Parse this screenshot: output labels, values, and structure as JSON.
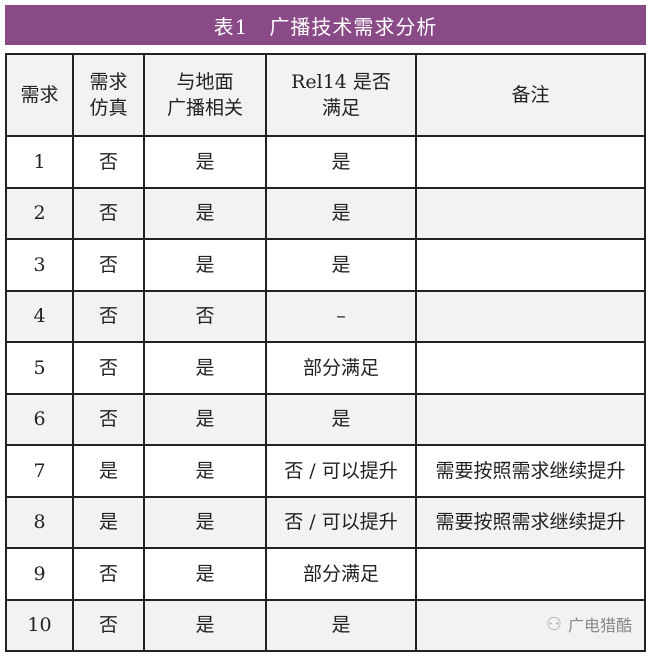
{
  "title": "表1　广播技术需求分析",
  "headers": [
    "需求",
    "需求\n仿真",
    "与地面\n广播相关",
    "Rel14 是否\n满足",
    "备注"
  ],
  "rows": [
    [
      "1",
      "否",
      "是",
      "是",
      ""
    ],
    [
      "2",
      "否",
      "是",
      "是",
      ""
    ],
    [
      "3",
      "否",
      "是",
      "是",
      ""
    ],
    [
      "4",
      "否",
      "否",
      "–",
      ""
    ],
    [
      "5",
      "否",
      "是",
      "部分满足",
      ""
    ],
    [
      "6",
      "否",
      "是",
      "是",
      ""
    ],
    [
      "7",
      "是",
      "是",
      "否 / 可以提升",
      "需要按照需求继续提升"
    ],
    [
      "8",
      "是",
      "是",
      "否 / 可以提升",
      "需要按照需求继续提升"
    ],
    [
      "9",
      "否",
      "是",
      "部分满足",
      ""
    ],
    [
      "10",
      "否",
      "是",
      "是",
      ""
    ]
  ],
  "watermark": {
    "icon": "wechat-icon",
    "text": "广电猎酷"
  },
  "colors": {
    "title_bg": "#8a4a88",
    "shade": "#f2f1f3"
  }
}
